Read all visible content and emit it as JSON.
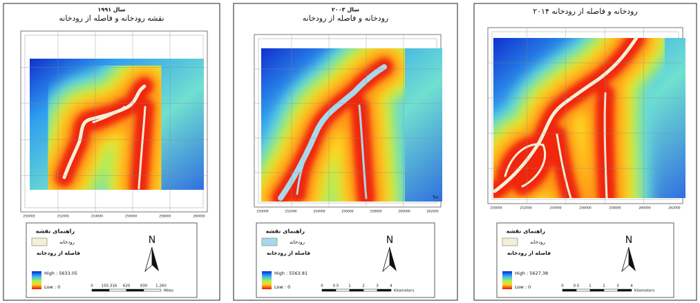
{
  "panels": [
    {
      "year": "سال ۱۹۹۱",
      "title": "نقشه رودخانه و فاصله از رودخانه",
      "x_ticks": [
        "250000",
        "252000",
        "254000",
        "256000",
        "258000",
        "260000"
      ],
      "legend": {
        "title": "راهنمای نقشه",
        "river": "رودخانه",
        "distance": "فاصله از رودخانه",
        "high": "High : 5633.05",
        "low": "Low : 0"
      },
      "scale": [
        "0",
        "155.316",
        "620",
        "930",
        "1,260",
        "Miles"
      ],
      "north": "N"
    },
    {
      "year": "سال ۲۰۰۳",
      "title": "رودخانه و فاصله از رودخانه",
      "x_ticks": [
        "250000",
        "252000",
        "254000",
        "256000",
        "258000",
        "260000",
        "262000"
      ],
      "corner": "Tea",
      "legend": {
        "title": "راهنمای نقشه",
        "river": "رودخانه",
        "distance": "فاصله از رودخانه",
        "high": "High : 5563.81",
        "low": "Low : 0"
      },
      "scale": [
        "0",
        "0.5",
        "1",
        "2",
        "3",
        "4",
        "Kilometers"
      ],
      "north": "N"
    },
    {
      "title": "رودخانه و فاصله از رودخانه ۲۰۱۴",
      "x_ticks": [
        "250000",
        "252000",
        "254000",
        "256000",
        "258000",
        "260000",
        "262000"
      ],
      "legend": {
        "title": "راهنمای نقشه",
        "river": "رودخانه",
        "distance": "فاصله از رودخانه",
        "high": "High : 5627.38",
        "low": "Low : 0"
      },
      "scale": [
        "0",
        "0.5",
        "1",
        "2",
        "3",
        "4",
        "Kilometers"
      ],
      "north": "N"
    }
  ]
}
